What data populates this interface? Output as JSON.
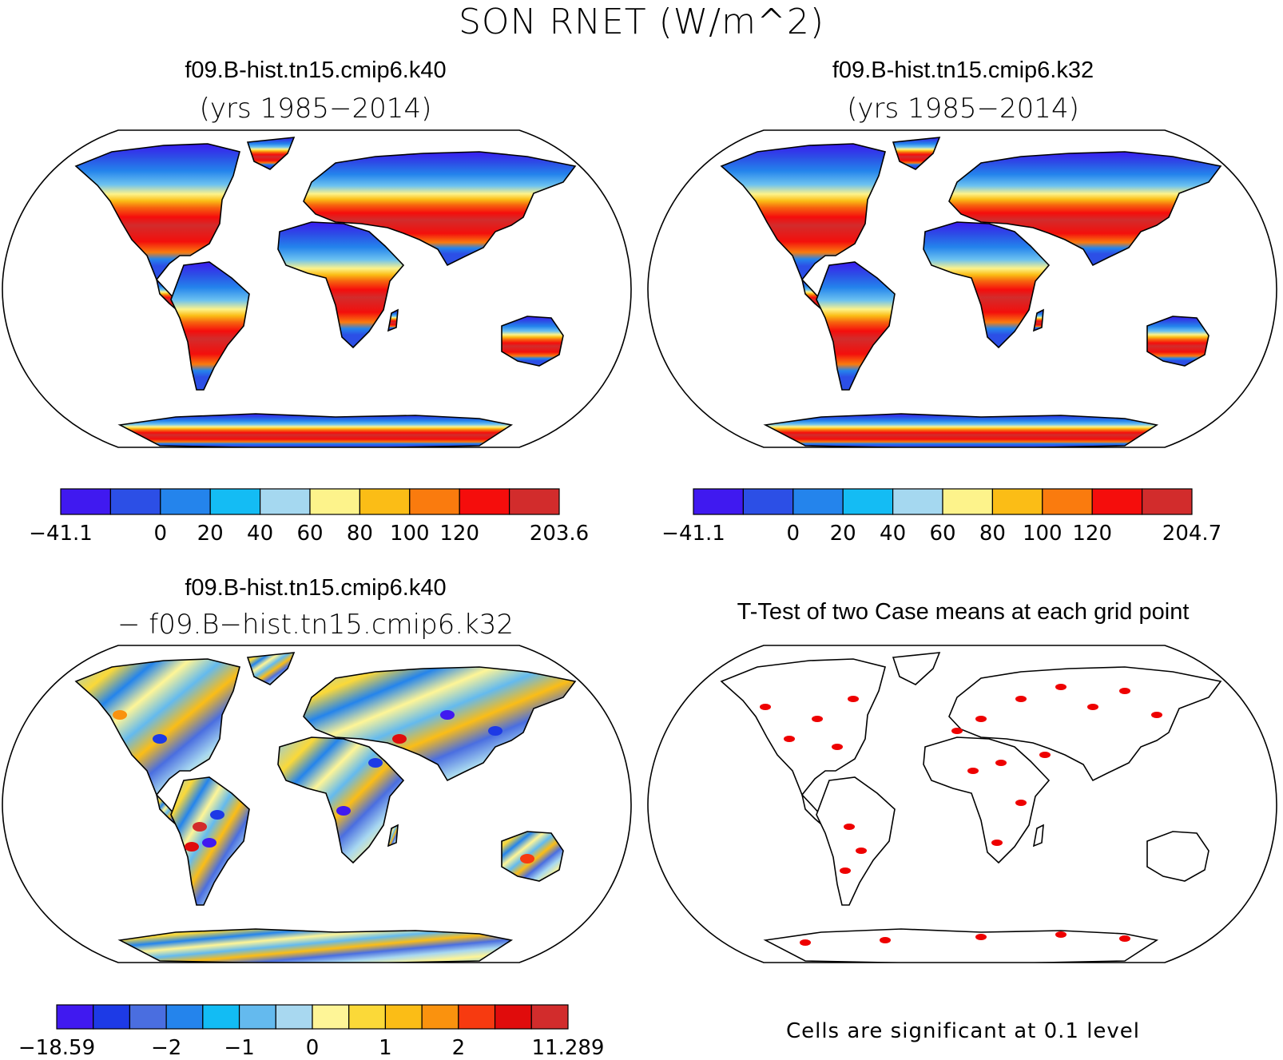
{
  "figure": {
    "title": "SON RNET (W/m^2)"
  },
  "panels": [
    {
      "id": "case1",
      "title": "f09.B-hist.tn15.cmip6.k40",
      "subtitle": "(yrs 1985−2014)",
      "kind": "field",
      "colorbar": {
        "colors": [
          "#4019f0",
          "#2c4fe6",
          "#2484ec",
          "#14bcf4",
          "#a5d8f0",
          "#fdf38b",
          "#fbbd16",
          "#fa7b0e",
          "#f50d0c",
          "#d22c2c"
        ],
        "labels": [
          "−41.1",
          "",
          "0",
          "20",
          "40",
          "60",
          "80",
          "100",
          "120",
          "",
          "203.6"
        ]
      }
    },
    {
      "id": "case2",
      "title": "f09.B-hist.tn15.cmip6.k32",
      "subtitle": "(yrs 1985−2014)",
      "kind": "field",
      "colorbar": {
        "colors": [
          "#4019f0",
          "#2c4fe6",
          "#2484ec",
          "#14bcf4",
          "#a5d8f0",
          "#fdf38b",
          "#fbbd16",
          "#fa7b0e",
          "#f50d0c",
          "#d22c2c"
        ],
        "labels": [
          "−41.1",
          "",
          "0",
          "20",
          "40",
          "60",
          "80",
          "100",
          "120",
          "",
          "204.7"
        ]
      }
    },
    {
      "id": "diff",
      "title": "f09.B-hist.tn15.cmip6.k40",
      "subtitle": "− f09.B−hist.tn15.cmip6.k32",
      "kind": "difference",
      "colorbar": {
        "colors": [
          "#4019f0",
          "#1d3ae6",
          "#4a6ee0",
          "#2484ec",
          "#12bcf4",
          "#64baee",
          "#a8d8f0",
          "#fef597",
          "#fbd938",
          "#fbbd16",
          "#fa920e",
          "#f73a10",
          "#e00c0c",
          "#d22c2c"
        ],
        "labels": [
          "−18.59",
          "",
          "",
          "−2",
          "",
          "−1",
          "",
          "0",
          "",
          "1",
          "",
          "2",
          "",
          "",
          "11.289"
        ]
      }
    },
    {
      "id": "ttest",
      "title": "T-Test of two Case means at each grid point",
      "subtitle": "",
      "kind": "significance",
      "note": "Cells are significant at 0.1 level",
      "significant_color": "#ee0000"
    }
  ]
}
